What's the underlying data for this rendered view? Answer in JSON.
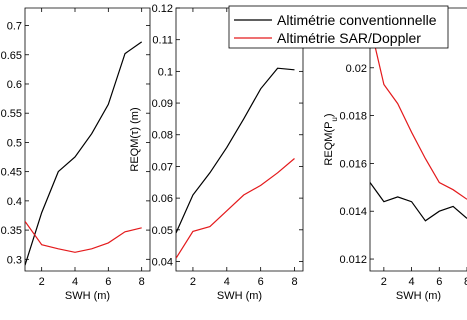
{
  "colors": {
    "conventional": "#000000",
    "sar": "#e41a1c",
    "axis": "#000000"
  },
  "legend": {
    "conventional_label": "Altimétrie conventionnelle",
    "sar_label": "Altimétrie SAR/Doppler",
    "placement": "top-right"
  },
  "chart_data": [
    {
      "type": "line",
      "title": "",
      "xlabel": "SWH (m)",
      "ylabel": "REQM(SWH) (m)",
      "xlim": [
        1,
        8.5
      ],
      "ylim": [
        0.28,
        0.73
      ],
      "x_ticks": [
        "2",
        "4",
        "6",
        "8"
      ],
      "y_ticks": [
        "0.3",
        "0.35",
        "0.4",
        "0.45",
        "0.5",
        "0.55",
        "0.6",
        "0.65",
        "0.7"
      ],
      "grid": false,
      "series": [
        {
          "name": "Altimétrie conventionnelle",
          "color": "#000000",
          "x": [
            1,
            2,
            3,
            4,
            5,
            6,
            7,
            8
          ],
          "y": [
            0.29,
            0.38,
            0.45,
            0.475,
            0.515,
            0.565,
            0.652,
            0.672
          ]
        },
        {
          "name": "Altimétrie SAR/Doppler",
          "color": "#e41a1c",
          "x": [
            1,
            2,
            3,
            4,
            5,
            6,
            7,
            8
          ],
          "y": [
            0.365,
            0.325,
            0.318,
            0.312,
            0.318,
            0.328,
            0.347,
            0.354
          ]
        }
      ]
    },
    {
      "type": "line",
      "title": "",
      "xlabel": "SWH (m)",
      "ylabel": "REQM(τ) (m)",
      "xlim": [
        1,
        8.5
      ],
      "ylim": [
        0.037,
        0.12
      ],
      "x_ticks": [
        "2",
        "4",
        "6",
        "8"
      ],
      "y_ticks": [
        "0.04",
        "0.05",
        "0.06",
        "0.07",
        "0.08",
        "0.09",
        "0.1",
        "0.11",
        "0.12"
      ],
      "grid": false,
      "series": [
        {
          "name": "Altimétrie conventionnelle",
          "color": "#000000",
          "x": [
            1,
            2,
            3,
            4,
            5,
            6,
            7,
            8
          ],
          "y": [
            0.049,
            0.061,
            0.068,
            0.076,
            0.085,
            0.0945,
            0.101,
            0.1005
          ]
        },
        {
          "name": "Altimétrie SAR/Doppler",
          "color": "#e41a1c",
          "x": [
            1,
            2,
            3,
            4,
            5,
            6,
            7,
            8
          ],
          "y": [
            0.041,
            0.0495,
            0.051,
            0.056,
            0.061,
            0.064,
            0.068,
            0.0725
          ]
        }
      ]
    },
    {
      "type": "line",
      "title": "",
      "xlabel": "SWH (m)",
      "ylabel": "REQM(Pu)",
      "xlim": [
        1,
        8
      ],
      "ylim": [
        0.0115,
        0.0225
      ],
      "x_ticks": [
        "2",
        "4",
        "6",
        "8"
      ],
      "y_ticks": [
        "0.012",
        "0.014",
        "0.016",
        "0.018",
        "0.02",
        "0.022"
      ],
      "grid": false,
      "series": [
        {
          "name": "Altimétrie conventionnelle",
          "color": "#000000",
          "x": [
            1,
            2,
            3,
            4,
            5,
            6,
            7,
            8
          ],
          "y": [
            0.0152,
            0.0144,
            0.0146,
            0.0144,
            0.0136,
            0.014,
            0.0142,
            0.0137
          ]
        },
        {
          "name": "Altimétrie SAR/Doppler",
          "color": "#e41a1c",
          "x": [
            1,
            2,
            3,
            4,
            5,
            6,
            7,
            8
          ],
          "y": [
            0.0218,
            0.0193,
            0.0185,
            0.0173,
            0.0162,
            0.0152,
            0.0149,
            0.0145
          ]
        }
      ]
    }
  ]
}
